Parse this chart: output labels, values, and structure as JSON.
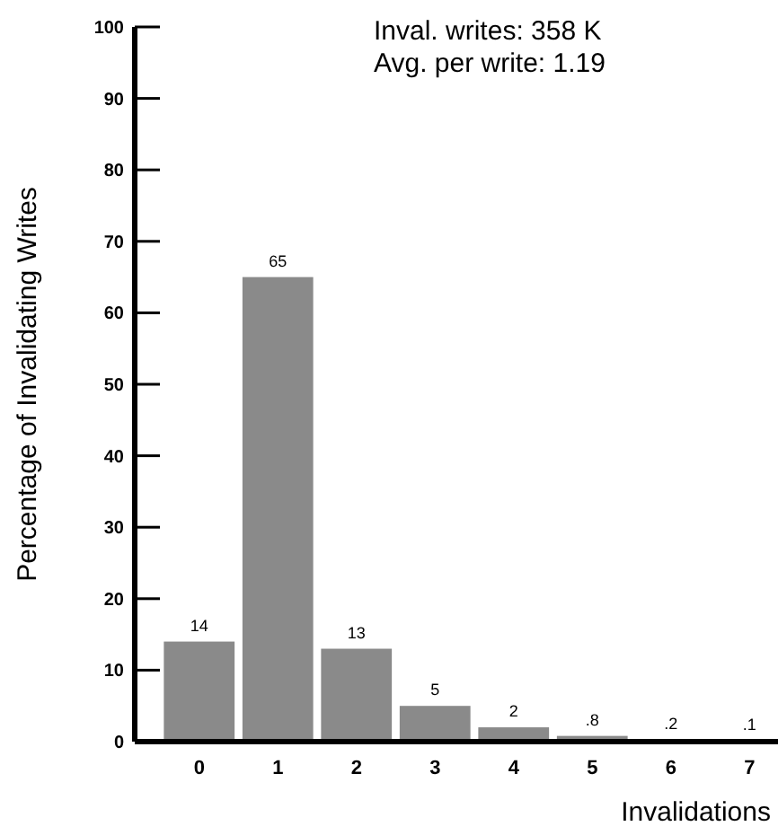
{
  "chart_data": {
    "type": "bar",
    "categories": [
      "0",
      "1",
      "2",
      "3",
      "4",
      "5",
      "6",
      "7"
    ],
    "values": [
      14,
      65,
      13,
      5,
      2,
      0.8,
      0.2,
      0.1
    ],
    "value_labels": [
      "14",
      "65",
      "13",
      "5",
      "2",
      ".8",
      ".2",
      ".1"
    ],
    "color": "#8a8a8a",
    "ylim": [
      0,
      100
    ],
    "yticks": [
      0,
      10,
      20,
      30,
      40,
      50,
      60,
      70,
      80,
      90,
      100
    ],
    "xlabel": "Invalidations",
    "ylabel": "Percentage of Invalidating Writes",
    "annotations": [
      "Inval. writes:  358 K",
      "Avg. per write:  1.19"
    ]
  }
}
